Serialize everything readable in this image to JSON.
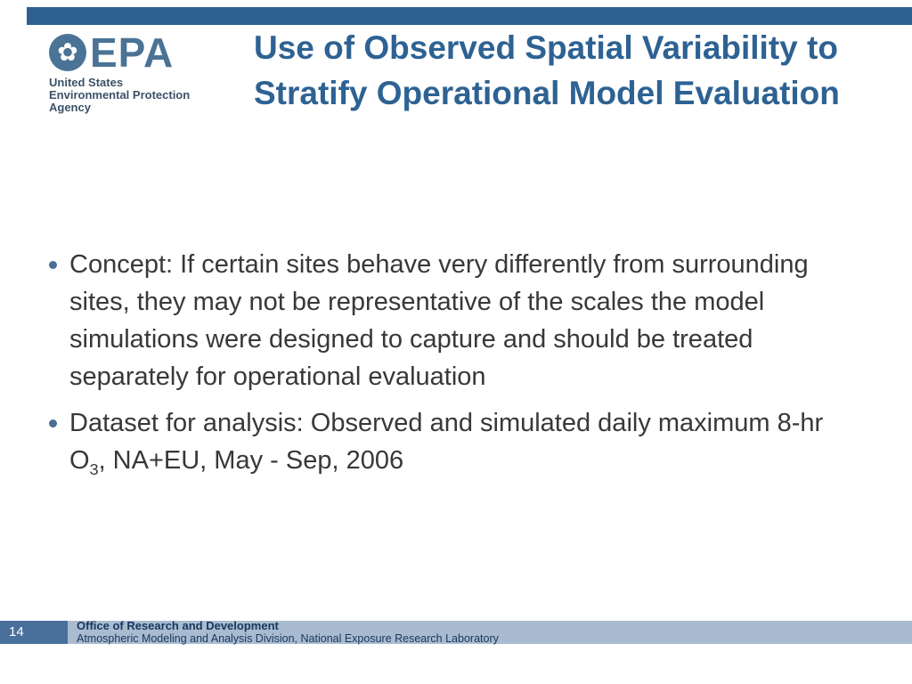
{
  "slide": {
    "title": "Use of Observed Spatial Variability to Stratify Operational Model Evaluation"
  },
  "colors": {
    "accent_blue": "#2e6191",
    "title_blue": "#2d6293",
    "footer_band": "#a9bbd0",
    "page_box_blue": "#49709b",
    "footer_text_navy": "#17375d",
    "body_text": "#383838"
  },
  "logo": {
    "icon_glyph": "✿",
    "epa": "EPA",
    "line1": "United States",
    "line2": "Environmental Protection",
    "line3": "Agency"
  },
  "bullets": [
    {
      "text": "Concept: If certain sites behave very differently from surrounding sites, they may not be representative of the scales the model simulations were designed to capture and should be treated separately for operational evaluation"
    },
    {
      "pre": "Dataset for analysis: Observed and simulated daily maximum 8-hr O",
      "sub": "3",
      "post": ", NA+EU, May - Sep, 2006"
    }
  ],
  "footer": {
    "page_number": "14",
    "line1": "Office of Research and Development",
    "line2": "Atmospheric Modeling and Analysis Division, National Exposure Research Laboratory"
  }
}
